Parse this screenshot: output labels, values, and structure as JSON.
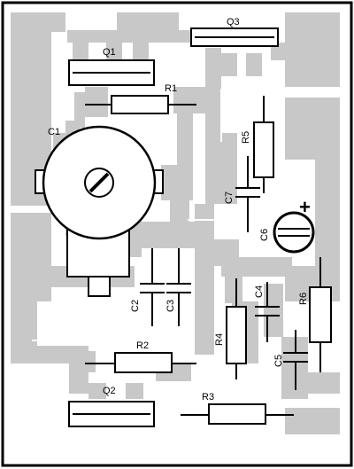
{
  "labels": {
    "q1": "Q1",
    "q2": "Q2",
    "q3": "Q3",
    "r1": "R1",
    "r2": "R2",
    "r3": "R3",
    "r4": "R4",
    "r5": "R5",
    "r6": "R6",
    "c1": "C1",
    "c2": "C2",
    "c3": "C3",
    "c4": "C4",
    "c5": "C5",
    "c6": "C6",
    "c7": "C7",
    "c6_polarity": "+"
  },
  "colors": {
    "copper": "#c8c8c8",
    "background": "#ffffff",
    "outline": "#000000"
  }
}
